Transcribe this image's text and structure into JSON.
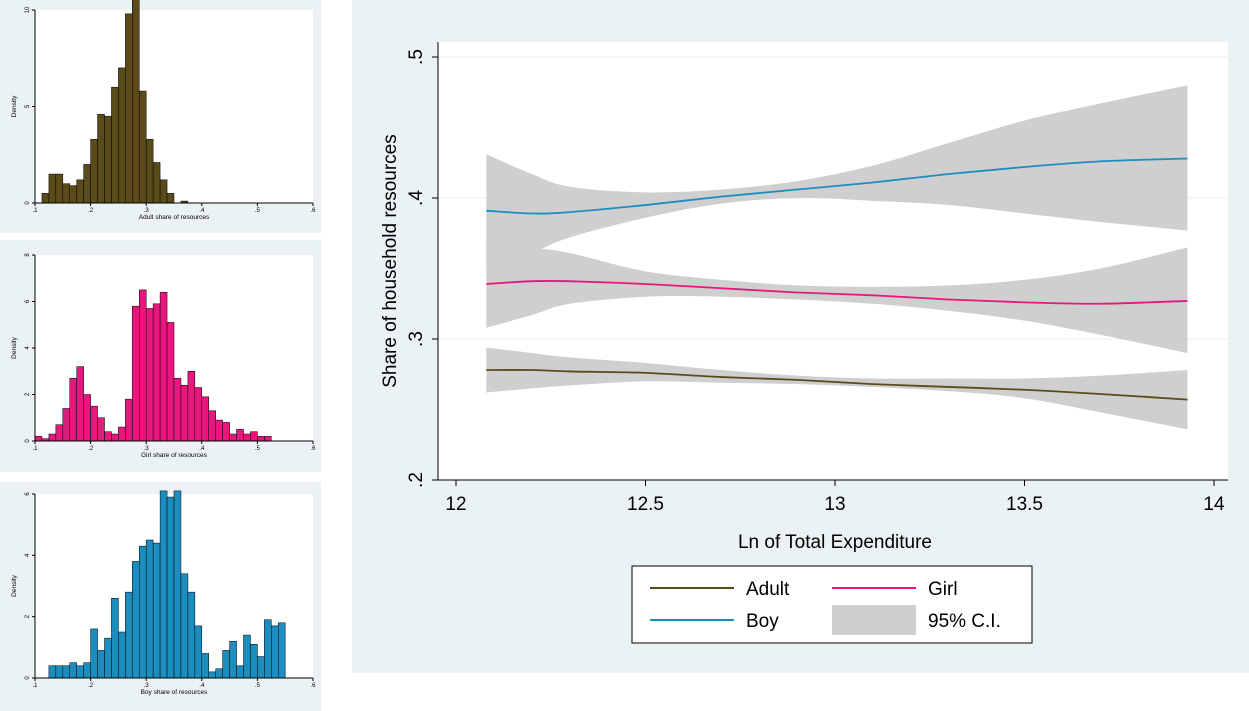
{
  "chart_data": [
    {
      "type": "bar",
      "title": "",
      "xlabel": "Adult share of resources",
      "ylabel": "Density",
      "xlim": [
        0.1,
        0.6
      ],
      "ylim": [
        0,
        10
      ],
      "xticks": [
        ".1",
        ".2",
        ".3",
        ".4",
        ".5",
        ".6"
      ],
      "yticks": [
        {
          "v": 0,
          "t": "0"
        },
        {
          "v": 5,
          "t": "5"
        },
        {
          "v": 10,
          "t": "10"
        }
      ],
      "bin_start": 0.1,
      "bin_width": 0.0125,
      "values": [
        0,
        0.5,
        1.5,
        1.5,
        1.0,
        0.9,
        1.2,
        2.0,
        3.3,
        4.6,
        4.5,
        6.0,
        7.0,
        9.8,
        11.0,
        5.8,
        3.3,
        2.1,
        1.2,
        0.5,
        0,
        0.1
      ],
      "bar_color": "#5b4a1a",
      "grid": false
    },
    {
      "type": "bar",
      "title": "",
      "xlabel": "Girl share of resources",
      "ylabel": "Density",
      "xlim": [
        0.1,
        0.6
      ],
      "ylim": [
        0,
        8
      ],
      "xticks": [
        ".1",
        ".2",
        ".3",
        ".4",
        ".5",
        ".6"
      ],
      "yticks": [
        {
          "v": 0,
          "t": "0"
        },
        {
          "v": 2,
          "t": "2"
        },
        {
          "v": 4,
          "t": "4"
        },
        {
          "v": 6,
          "t": "6"
        },
        {
          "v": 8,
          "t": "8"
        }
      ],
      "bin_start": 0.1,
      "bin_width": 0.0125,
      "values": [
        0.2,
        0.1,
        0.3,
        0.7,
        1.4,
        2.7,
        3.2,
        2.0,
        1.5,
        1.0,
        0.4,
        0.3,
        0.6,
        1.8,
        5.8,
        6.5,
        5.7,
        5.9,
        6.4,
        5.1,
        2.7,
        2.4,
        3.0,
        2.3,
        1.9,
        1.3,
        0.9,
        0.8,
        0.3,
        0.5,
        0.3,
        0.4,
        0.2,
        0.2
      ],
      "bar_color": "#e8177e",
      "grid": false
    },
    {
      "type": "bar",
      "title": "",
      "xlabel": "Boy share of resources",
      "ylabel": "Density",
      "xlim": [
        0.1,
        0.6
      ],
      "ylim": [
        0,
        6
      ],
      "xticks": [
        ".1",
        ".2",
        ".3",
        ".4",
        ".5",
        ".6"
      ],
      "yticks": [
        {
          "v": 0,
          "t": "0"
        },
        {
          "v": 2,
          "t": "2"
        },
        {
          "v": 4,
          "t": "4"
        },
        {
          "v": 6,
          "t": "6"
        }
      ],
      "bin_start": 0.125,
      "bin_width": 0.0125,
      "values": [
        0.4,
        0.4,
        0.4,
        0.5,
        0.4,
        0.5,
        1.6,
        0.9,
        1.3,
        2.6,
        1.5,
        2.8,
        3.8,
        4.3,
        4.5,
        4.4,
        6.1,
        5.9,
        6.1,
        3.4,
        2.8,
        1.7,
        0.8,
        0.2,
        0.3,
        0.9,
        1.2,
        0.4,
        1.4,
        1.1,
        0.7,
        1.9,
        1.7,
        1.8
      ],
      "bar_color": "#1b8ebf",
      "grid": false
    },
    {
      "type": "line",
      "title": "",
      "xlabel": "Ln of Total Expenditure",
      "ylabel": "Share of household resources",
      "xlim": [
        12,
        14
      ],
      "ylim": [
        0.2,
        0.5
      ],
      "xticks": [
        {
          "v": 12,
          "t": "12"
        },
        {
          "v": 12.5,
          "t": "12.5"
        },
        {
          "v": 13,
          "t": "13"
        },
        {
          "v": 13.5,
          "t": "13.5"
        },
        {
          "v": 14,
          "t": "14"
        }
      ],
      "yticks": [
        {
          "v": 0.2,
          "t": ".2"
        },
        {
          "v": 0.3,
          "t": ".3"
        },
        {
          "v": 0.4,
          "t": ".4"
        },
        {
          "v": 0.5,
          "t": ".5"
        }
      ],
      "grid": true,
      "legend_position": "bottom",
      "x": [
        12.08,
        12.2,
        12.3,
        12.5,
        12.7,
        12.9,
        13.1,
        13.3,
        13.5,
        13.7,
        13.93
      ],
      "series": [
        {
          "name": "Adult",
          "color": "#5b4a1a",
          "values": [
            0.278,
            0.278,
            0.277,
            0.276,
            0.273,
            0.271,
            0.268,
            0.266,
            0.264,
            0.261,
            0.257
          ],
          "lower": [
            0.262,
            0.265,
            0.267,
            0.27,
            0.269,
            0.268,
            0.266,
            0.263,
            0.258,
            0.248,
            0.236
          ],
          "upper": [
            0.294,
            0.29,
            0.287,
            0.283,
            0.278,
            0.274,
            0.272,
            0.272,
            0.272,
            0.274,
            0.278
          ]
        },
        {
          "name": "Girl",
          "color": "#e8177e",
          "values": [
            0.339,
            0.341,
            0.341,
            0.339,
            0.336,
            0.333,
            0.331,
            0.328,
            0.326,
            0.325,
            0.327
          ],
          "lower": [
            0.308,
            0.317,
            0.325,
            0.33,
            0.33,
            0.328,
            0.325,
            0.32,
            0.313,
            0.303,
            0.29
          ],
          "upper": [
            0.37,
            0.365,
            0.361,
            0.348,
            0.342,
            0.338,
            0.337,
            0.338,
            0.342,
            0.35,
            0.365
          ]
        },
        {
          "name": "Boy",
          "color": "#1b8ebf",
          "values": [
            0.391,
            0.389,
            0.39,
            0.395,
            0.401,
            0.406,
            0.411,
            0.417,
            0.422,
            0.426,
            0.428
          ],
          "lower": [
            0.35,
            0.361,
            0.372,
            0.386,
            0.396,
            0.4,
            0.398,
            0.395,
            0.389,
            0.383,
            0.377
          ],
          "upper": [
            0.431,
            0.417,
            0.408,
            0.404,
            0.406,
            0.412,
            0.423,
            0.439,
            0.455,
            0.467,
            0.48
          ]
        }
      ],
      "ci_color": "#cfcfcf",
      "legend": [
        {
          "label": "Adult",
          "kind": "line",
          "color": "#5b4a1a"
        },
        {
          "label": "Girl",
          "kind": "line",
          "color": "#e8177e"
        },
        {
          "label": "Boy",
          "kind": "line",
          "color": "#1b8ebf"
        },
        {
          "label": "95% C.I.",
          "kind": "area",
          "color": "#cfcfcf"
        }
      ]
    }
  ]
}
